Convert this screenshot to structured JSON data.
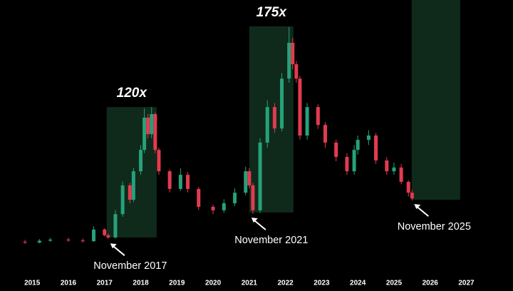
{
  "chart_data": {
    "type": "candlestick",
    "x": [
      2014.8,
      2015.2,
      2015.5,
      2016.0,
      2016.4,
      2016.7,
      2017.0,
      2017.1,
      2017.3,
      2017.5,
      2017.7,
      2017.8,
      2018.0,
      2018.1,
      2018.2,
      2018.3,
      2018.4,
      2018.5,
      2018.8,
      2019.1,
      2019.3,
      2019.6,
      2020.0,
      2020.3,
      2020.6,
      2020.9,
      2021.0,
      2021.1,
      2021.3,
      2021.5,
      2021.7,
      2021.9,
      2022.1,
      2022.2,
      2022.3,
      2022.4,
      2022.6,
      2022.9,
      2023.1,
      2023.4,
      2023.7,
      2023.9,
      2024.0,
      2024.3,
      2024.5,
      2024.8,
      2025.0,
      2025.2,
      2025.4,
      2025.5
    ],
    "open": [
      10.8,
      10.5,
      11.2,
      11.6,
      11.3,
      11.0,
      15.3,
      13.2,
      12.4,
      21,
      31.6,
      26.3,
      36.8,
      44.7,
      56.6,
      50.5,
      57.9,
      44.7,
      36.8,
      30.3,
      35.5,
      30.3,
      23.7,
      22.4,
      25,
      28.9,
      36.8,
      31.6,
      22.4,
      47.4,
      60.5,
      52.6,
      71,
      84.2,
      76.3,
      71,
      50,
      60.5,
      53.9,
      47.4,
      42.1,
      36.8,
      44.7,
      48.4,
      50,
      40.8,
      36.8,
      38.2,
      32.9,
      28.9
    ],
    "high": [
      11.5,
      11.8,
      12.2,
      12.3,
      12,
      16.5,
      15.8,
      13.8,
      22.5,
      33,
      32.5,
      38,
      46.5,
      60,
      58,
      60.5,
      58.5,
      45.5,
      37.5,
      38,
      36.5,
      31,
      24.5,
      26.5,
      30.5,
      38.5,
      38,
      32.5,
      49,
      63,
      62,
      73,
      90,
      86,
      77.5,
      72,
      62,
      61.5,
      55,
      48.5,
      43.5,
      46.5,
      50,
      52,
      51,
      42,
      40,
      39.5,
      33.5,
      30
    ],
    "low": [
      10,
      10.2,
      10.8,
      10.8,
      10.5,
      10.8,
      12.8,
      11.8,
      12,
      20,
      25,
      25.5,
      35.5,
      43.5,
      49,
      49,
      43.5,
      35.5,
      29,
      29.5,
      29,
      22.5,
      21,
      21.5,
      24,
      28,
      30.5,
      21,
      21.5,
      45.5,
      51,
      51.5,
      69.5,
      74.5,
      69.5,
      48.5,
      48.5,
      52.5,
      45.5,
      40.5,
      35.5,
      35.5,
      43,
      46.5,
      39.5,
      35.5,
      35.5,
      32,
      27.5,
      26
    ],
    "close": [
      10.5,
      11.2,
      11.6,
      11.3,
      11.0,
      15.3,
      13.2,
      12.4,
      21,
      31.6,
      26.3,
      36.8,
      44.7,
      56.6,
      50.5,
      57.9,
      44.7,
      36.8,
      30.3,
      35.5,
      30.3,
      23.7,
      22.4,
      25,
      28.9,
      36.8,
      31.6,
      22.4,
      47.4,
      60.5,
      52.6,
      71,
      84.2,
      76.3,
      71,
      50,
      60.5,
      53.9,
      47.4,
      42.1,
      36.8,
      44.7,
      48.4,
      50,
      40.8,
      36.8,
      38.2,
      32.9,
      28.9,
      26.8
    ],
    "up_color": "#26a17b",
    "down_color": "#e23b4f",
    "xlim": [
      2014.11,
      2028.29
    ],
    "ylim": [
      0,
      100
    ],
    "xticks": [
      2015,
      2016,
      2017,
      2018,
      2019,
      2020,
      2021,
      2022,
      2023,
      2024,
      2025,
      2026,
      2027
    ],
    "highlights": [
      {
        "x": [
          2017.06,
          2018.44
        ],
        "y": [
          12.4,
          60.5
        ],
        "label": "120x"
      },
      {
        "x": [
          2021.0,
          2022.22
        ],
        "y": [
          21.6,
          90.3
        ],
        "label": "175x"
      },
      {
        "x": [
          2025.49,
          2026.83
        ],
        "y": [
          26.3,
          100
        ]
      }
    ],
    "highlight_color": "#0f2a1a",
    "annotations": [
      {
        "text": "November 2017",
        "x": 2017.1,
        "y": 11
      },
      {
        "text": "November 2021",
        "x": 2021.0,
        "y": 20.5
      },
      {
        "text": "November 2025",
        "x": 2025.5,
        "y": 25.5
      }
    ]
  }
}
